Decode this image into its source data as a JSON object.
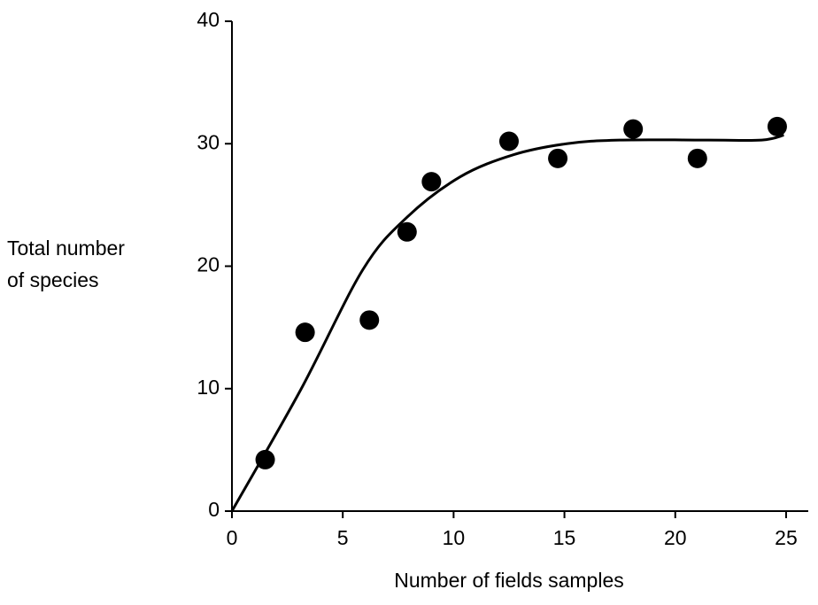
{
  "chart_data": {
    "type": "scatter",
    "xlabel": "Number of fields samples",
    "ylabel_lines": [
      "Total number",
      "of species"
    ],
    "x": [
      1.5,
      3.3,
      6.2,
      7.9,
      9.0,
      12.5,
      14.7,
      18.1,
      21.0,
      24.6
    ],
    "values": [
      4.2,
      14.6,
      15.6,
      22.8,
      26.9,
      30.2,
      28.8,
      31.2,
      28.8,
      31.4
    ],
    "color": "#000000",
    "curve": {
      "x": [
        0,
        3.1,
        5.9,
        7.9,
        10.3,
        12.7,
        15.1,
        17.5,
        21.5,
        23.9,
        24.9
      ],
      "values": [
        0,
        9.9,
        19.7,
        24,
        27.3,
        29.1,
        30,
        30.3,
        30.3,
        30.3,
        30.7
      ],
      "color": "#000000"
    },
    "xlim": [
      0,
      26
    ],
    "ylim": [
      0,
      40
    ],
    "xticks": [
      0,
      5,
      10,
      15,
      20,
      25
    ],
    "yticks": [
      0,
      10,
      20,
      30,
      40
    ],
    "grid": false
  }
}
